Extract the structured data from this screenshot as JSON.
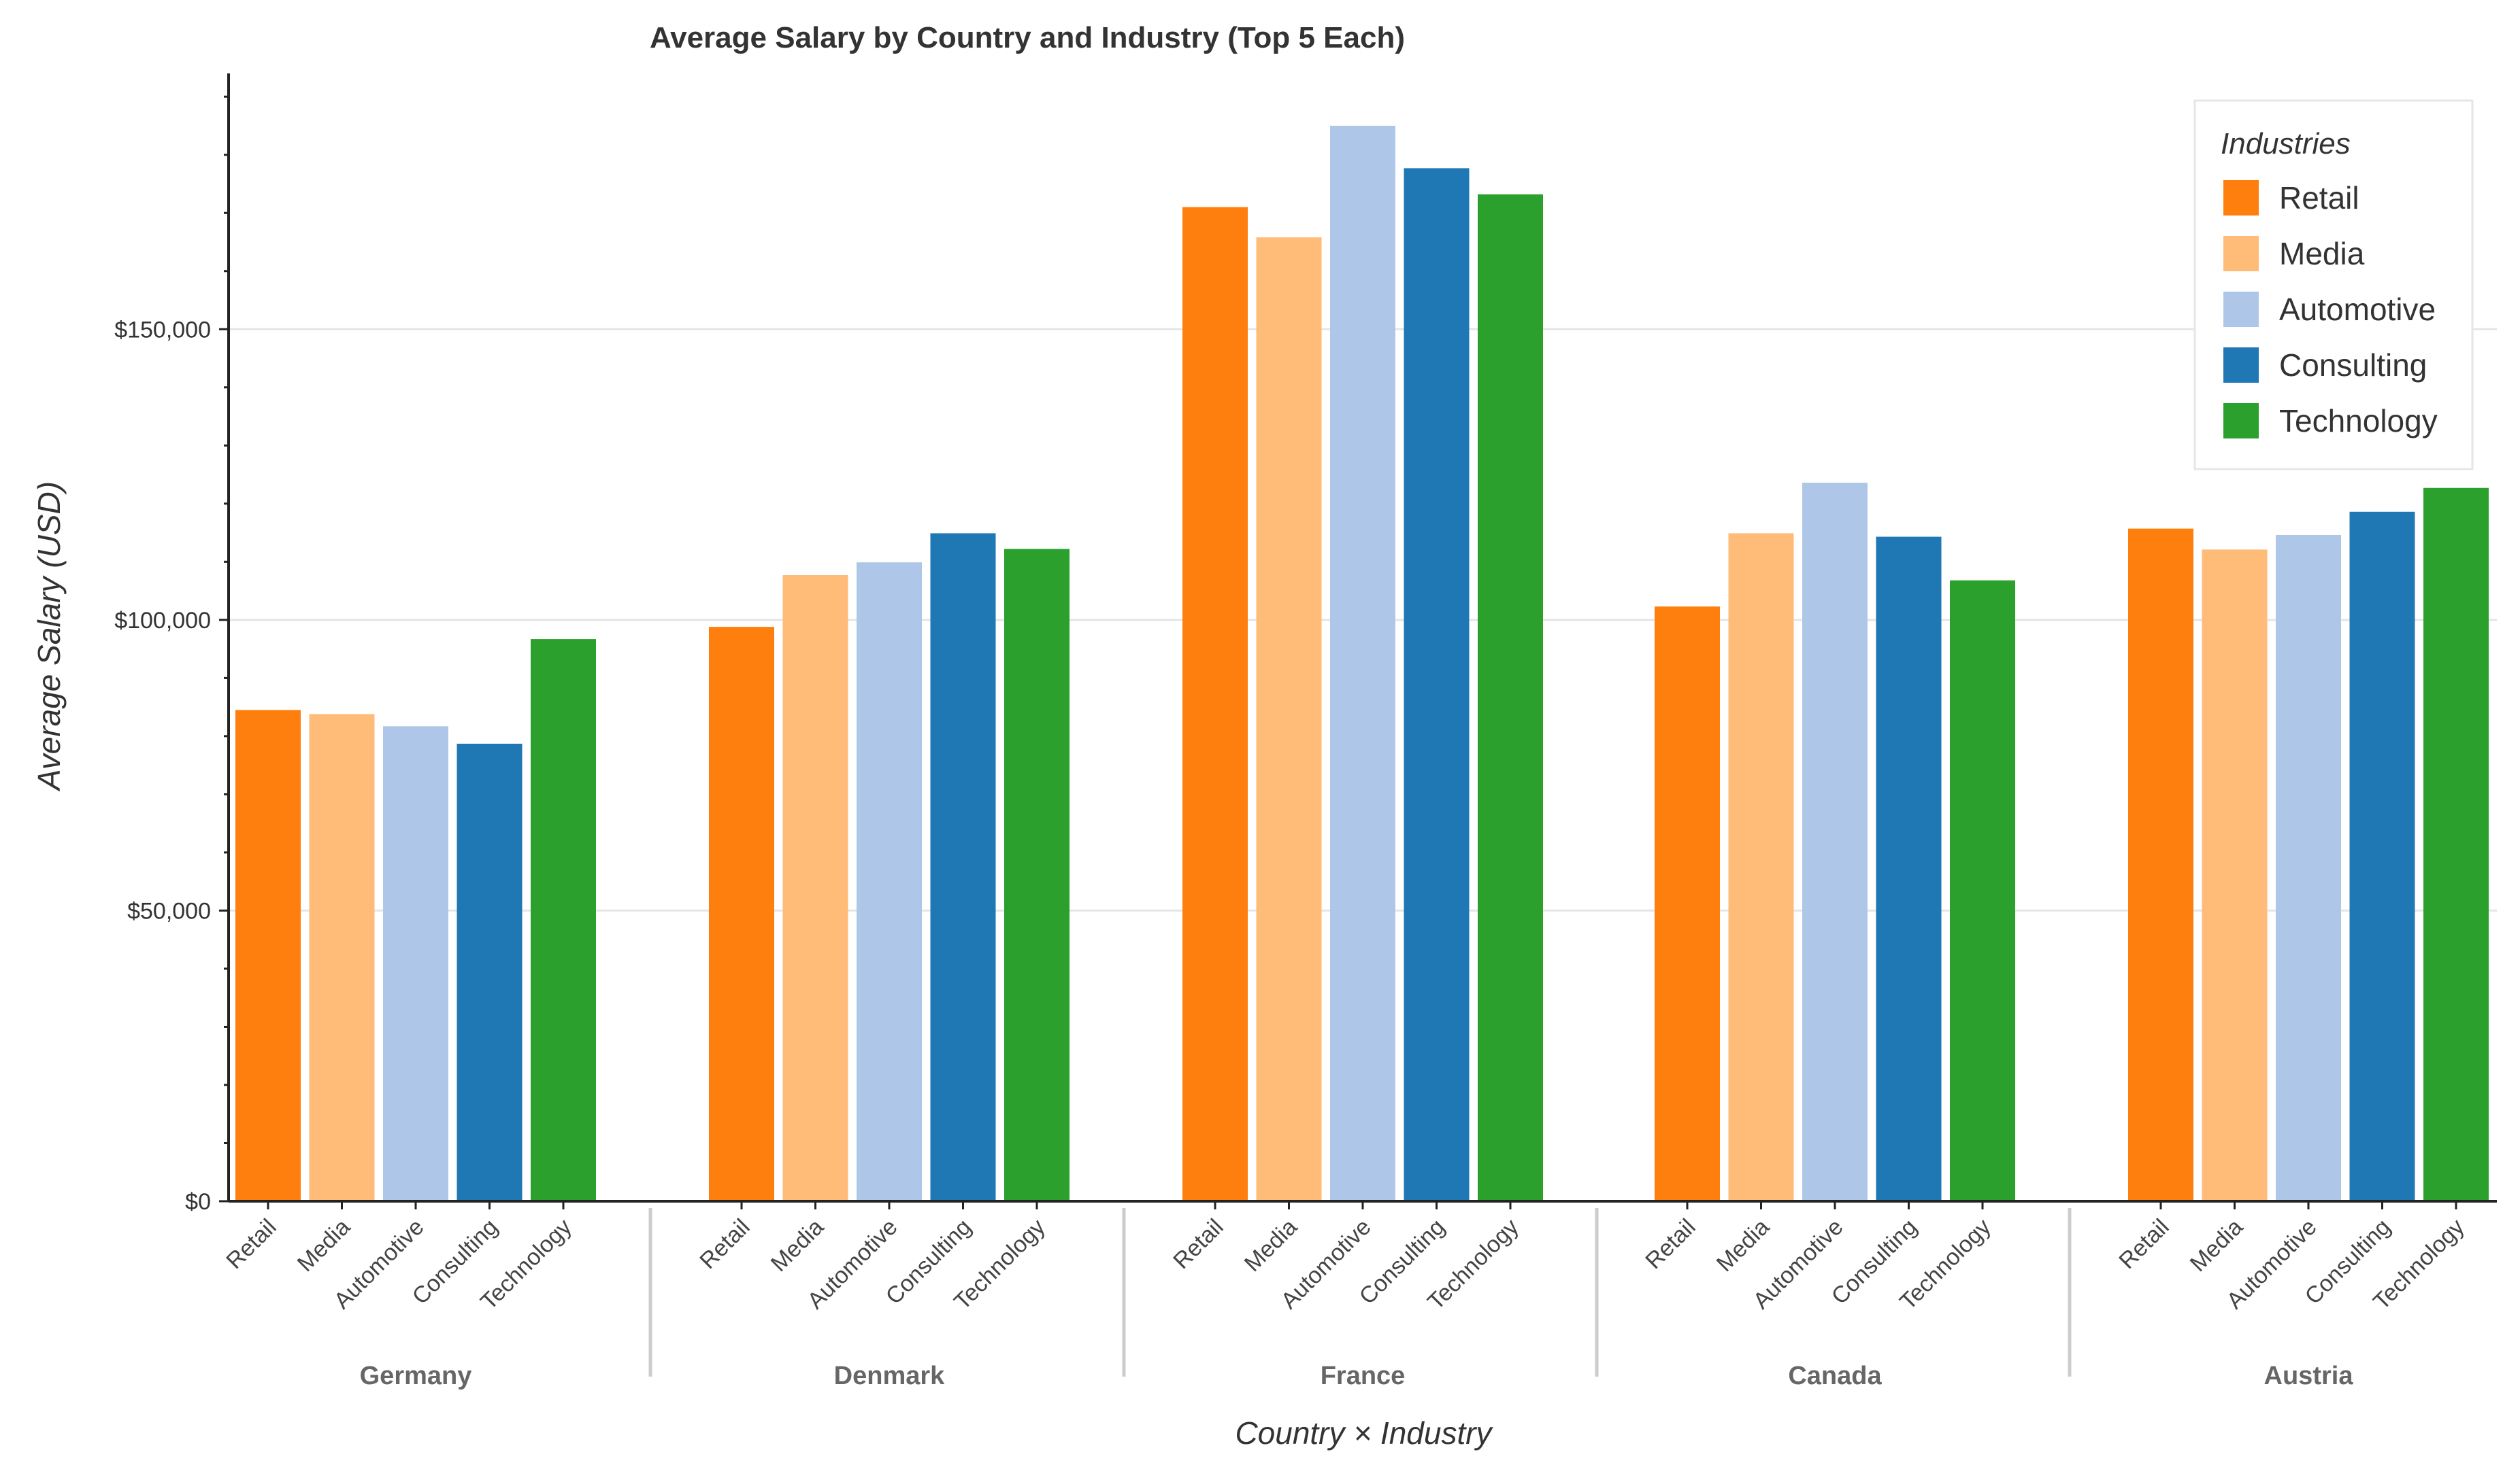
{
  "chart_data": {
    "type": "bar",
    "title": "Average Salary by Country and Industry (Top 5 Each)",
    "xlabel": "Country × Industry",
    "ylabel": "Average Salary (USD)",
    "ylim": [
      0,
      194000
    ],
    "yticks": [
      0,
      50000,
      100000,
      150000
    ],
    "ytick_labels": [
      "$0",
      "$50,000",
      "$100,000",
      "$150,000"
    ],
    "grid": "horizontal",
    "legend_title": "Industries",
    "legend_position": "top-right",
    "categories": [
      "Retail",
      "Media",
      "Automotive",
      "Consulting",
      "Technology"
    ],
    "colors": {
      "Retail": "#ff7f0e",
      "Media": "#ffbb78",
      "Automotive": "#aec7e8",
      "Consulting": "#1f77b4",
      "Technology": "#2ca02c"
    },
    "groups": [
      {
        "name": "Germany",
        "values": [
          84500,
          83800,
          81700,
          78700,
          96700
        ]
      },
      {
        "name": "Denmark",
        "values": [
          98800,
          107700,
          109900,
          114900,
          112200
        ]
      },
      {
        "name": "France",
        "values": [
          171000,
          165800,
          185000,
          177700,
          173200
        ]
      },
      {
        "name": "Canada",
        "values": [
          102300,
          114900,
          123600,
          114300,
          106800
        ]
      },
      {
        "name": "Austria",
        "values": [
          115700,
          112100,
          114600,
          118600,
          122700
        ]
      }
    ]
  }
}
